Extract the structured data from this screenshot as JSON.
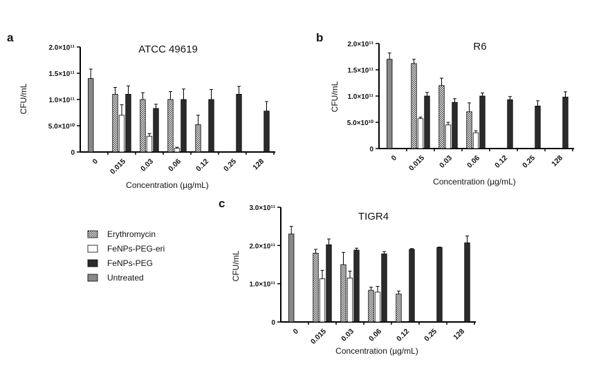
{
  "legend": [
    {
      "name": "Erythromycin",
      "style": "checker"
    },
    {
      "name": "FeNPs-PEG-eri",
      "style": "white"
    },
    {
      "name": "FeNPs-PEG",
      "style": "black"
    },
    {
      "name": "Untreated",
      "style": "gray"
    }
  ],
  "colors": {
    "black": "#2b2b2b",
    "gray": "#888888",
    "white": "#ffffff",
    "checker": "#444444"
  },
  "chart_data": [
    {
      "type": "bar",
      "panel": "a",
      "title": "ATCC 49619",
      "xlabel": "Concentration (µg/mL)",
      "ylabel": "CFU/mL",
      "ylim": [
        0,
        200000000000.0
      ],
      "yticks": [
        {
          "value": 0,
          "label": "0"
        },
        {
          "value": 50000000000.0,
          "label": "5.0×10¹⁰"
        },
        {
          "value": 100000000000.0,
          "label": "1.0×10¹¹"
        },
        {
          "value": 150000000000.0,
          "label": "1.5×10¹¹"
        },
        {
          "value": 200000000000.0,
          "label": "2.0×10¹¹"
        }
      ],
      "categories": [
        "0",
        "0.015",
        "0.03",
        "0.06",
        "0.12",
        "0.25",
        "128"
      ],
      "series": [
        {
          "name": "Untreated",
          "values": [
            140000000000.0,
            null,
            null,
            null,
            null,
            null,
            null
          ],
          "errors": [
            18000000000.0,
            null,
            null,
            null,
            null,
            null,
            null
          ]
        },
        {
          "name": "Erythromycin",
          "values": [
            null,
            110000000000.0,
            100000000000.0,
            100000000000.0,
            52000000000.0,
            null,
            null
          ],
          "errors": [
            null,
            13000000000.0,
            13000000000.0,
            15000000000.0,
            18000000000.0,
            null,
            null
          ]
        },
        {
          "name": "FeNPs-PEG-eri",
          "values": [
            null,
            70000000000.0,
            30000000000.0,
            7000000000.0,
            null,
            null,
            null
          ],
          "errors": [
            null,
            20000000000.0,
            5000000000.0,
            2000000000.0,
            null,
            null,
            null
          ]
        },
        {
          "name": "FeNPs-PEG",
          "values": [
            null,
            110000000000.0,
            83000000000.0,
            100000000000.0,
            100000000000.0,
            110000000000.0,
            78000000000.0
          ],
          "errors": [
            null,
            16000000000.0,
            8000000000.0,
            20000000000.0,
            19000000000.0,
            15000000000.0,
            18000000000.0
          ]
        }
      ]
    },
    {
      "type": "bar",
      "panel": "b",
      "title": "R6",
      "xlabel": "Concentration (µg/mL)",
      "ylabel": "CFU/mL",
      "ylim": [
        0,
        200000000000.0
      ],
      "yticks": [
        {
          "value": 0,
          "label": "0"
        },
        {
          "value": 50000000000.0,
          "label": "5.0×10¹⁰"
        },
        {
          "value": 100000000000.0,
          "label": "1.0×10¹¹"
        },
        {
          "value": 150000000000.0,
          "label": "1.5×10¹¹"
        },
        {
          "value": 200000000000.0,
          "label": "2.0×10¹¹"
        }
      ],
      "categories": [
        "0",
        "0.015",
        "0.03",
        "0.06",
        "0.12",
        "0.25",
        "128"
      ],
      "series": [
        {
          "name": "Untreated",
          "values": [
            170000000000.0,
            null,
            null,
            null,
            null,
            null,
            null
          ],
          "errors": [
            12000000000.0,
            null,
            null,
            null,
            null,
            null,
            null
          ]
        },
        {
          "name": "Erythromycin",
          "values": [
            null,
            162000000000.0,
            120000000000.0,
            70000000000.0,
            null,
            null,
            null
          ],
          "errors": [
            null,
            8000000000.0,
            14000000000.0,
            17000000000.0,
            null,
            null,
            null
          ]
        },
        {
          "name": "FeNPs-PEG-eri",
          "values": [
            null,
            57000000000.0,
            45000000000.0,
            30000000000.0,
            null,
            null,
            null
          ],
          "errors": [
            null,
            3000000000.0,
            5000000000.0,
            4000000000.0,
            null,
            null,
            null
          ]
        },
        {
          "name": "FeNPs-PEG",
          "values": [
            null,
            100000000000.0,
            88000000000.0,
            100000000000.0,
            93000000000.0,
            81000000000.0,
            98000000000.0
          ],
          "errors": [
            null,
            7000000000.0,
            7000000000.0,
            6000000000.0,
            6000000000.0,
            10000000000.0,
            10000000000.0
          ]
        }
      ]
    },
    {
      "type": "bar",
      "panel": "c",
      "title": "TIGR4",
      "xlabel": "Concentration (µg/mL)",
      "ylabel": "CFU/mL",
      "ylim": [
        0,
        300000000000.0
      ],
      "yticks": [
        {
          "value": 0,
          "label": "0"
        },
        {
          "value": 100000000000.0,
          "label": "1.0×10¹¹"
        },
        {
          "value": 200000000000.0,
          "label": "2.0×10¹¹"
        },
        {
          "value": 300000000000.0,
          "label": "3.0×10¹¹"
        }
      ],
      "categories": [
        "0",
        "0.015",
        "0.03",
        "0.06",
        "0.12",
        "0.25",
        "128"
      ],
      "series": [
        {
          "name": "Untreated",
          "values": [
            230000000000.0,
            null,
            null,
            null,
            null,
            null,
            null
          ],
          "errors": [
            20000000000.0,
            null,
            null,
            null,
            null,
            null,
            null
          ]
        },
        {
          "name": "Erythromycin",
          "values": [
            null,
            180000000000.0,
            150000000000.0,
            83000000000.0,
            73000000000.0,
            null,
            null
          ],
          "errors": [
            null,
            10000000000.0,
            32000000000.0,
            8000000000.0,
            8000000000.0,
            null,
            null
          ]
        },
        {
          "name": "FeNPs-PEG-eri",
          "values": [
            null,
            113000000000.0,
            115000000000.0,
            78000000000.0,
            null,
            null,
            null
          ],
          "errors": [
            null,
            22000000000.0,
            18000000000.0,
            15000000000.0,
            null,
            null,
            null
          ]
        },
        {
          "name": "FeNPs-PEG",
          "values": [
            null,
            202000000000.0,
            188000000000.0,
            178000000000.0,
            190000000000.0,
            195000000000.0,
            207000000000.0
          ],
          "errors": [
            null,
            15000000000.0,
            5000000000.0,
            6000000000.0,
            2000000000.0,
            1000000000.0,
            18000000000.0
          ]
        }
      ]
    }
  ]
}
